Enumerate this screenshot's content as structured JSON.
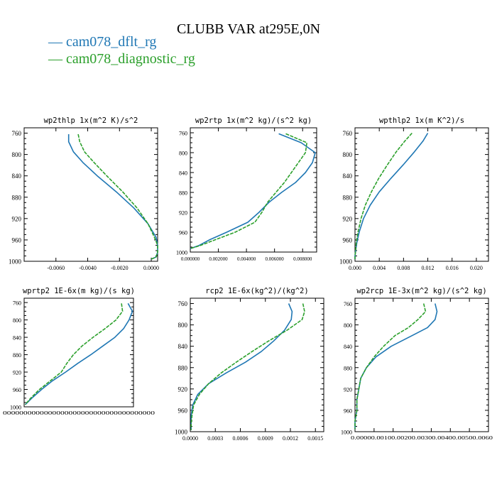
{
  "title": "CLUBB VAR at295E,0N",
  "colors": {
    "dflt": "#1f77b4",
    "diag": "#2ca02c"
  },
  "legend": [
    {
      "label": "cam078_dflt_rg",
      "color": "#1f77b4"
    },
    {
      "label": "cam078_diagnostic_rg",
      "color": "#2ca02c"
    }
  ],
  "chart_data": [
    {
      "type": "line",
      "title": "wp2thlp  1x(m^2 K)/s^2",
      "xlim": [
        -0.008,
        0.0004
      ],
      "ylim": [
        1000,
        750
      ],
      "xticks": [
        -0.006,
        -0.004,
        -0.002,
        0.0
      ],
      "xticklabels": [
        "-0.0060",
        "-0.0040",
        "-0.0020",
        "0.0000"
      ],
      "yticks": [
        760,
        800,
        840,
        880,
        920,
        960,
        1000
      ],
      "y": [
        762,
        776,
        795,
        815,
        840,
        870,
        900,
        930,
        955,
        970,
        983,
        992,
        996
      ],
      "series": [
        {
          "name": "cam078_dflt_rg",
          "values": [
            -0.0052,
            -0.0052,
            -0.0049,
            -0.0043,
            -0.0034,
            -0.0022,
            -0.0011,
            -0.0002,
            0.0003,
            0.0004,
            0.0004,
            0.0003,
            0.0
          ]
        },
        {
          "name": "cam078_diagnostic_rg",
          "values": [
            -0.0046,
            -0.0045,
            -0.0042,
            -0.0036,
            -0.0028,
            -0.0018,
            -0.0009,
            -0.0002,
            0.0002,
            0.0004,
            0.0004,
            0.0003,
            0.0
          ]
        }
      ]
    },
    {
      "type": "line",
      "title": "wp2rtp  1x(m^2 kg)/(s^2 kg)",
      "xlim": [
        0.0,
        0.009
      ],
      "ylim": [
        1000,
        750
      ],
      "xticks": [
        0.0,
        0.002,
        0.004,
        0.006,
        0.008
      ],
      "xticklabels": [
        "0.000000",
        "0.002000",
        "0.004000",
        "0.006000",
        "0.008000"
      ],
      "yticks": [
        760,
        800,
        840,
        880,
        920,
        960,
        1000
      ],
      "y": [
        762,
        780,
        800,
        820,
        840,
        860,
        880,
        900,
        920,
        940,
        960,
        975,
        987,
        993
      ],
      "series": [
        {
          "name": "cam078_dflt_rg",
          "values": [
            0.0063,
            0.0079,
            0.0089,
            0.0087,
            0.0082,
            0.0075,
            0.0065,
            0.0056,
            0.0049,
            0.0041,
            0.0026,
            0.0014,
            0.0006,
            0.0
          ]
        },
        {
          "name": "cam078_diagnostic_rg",
          "values": [
            0.0068,
            0.0083,
            0.0082,
            0.0077,
            0.0072,
            0.0067,
            0.0061,
            0.0055,
            0.0051,
            0.0046,
            0.0032,
            0.0018,
            0.0007,
            0.0
          ]
        }
      ]
    },
    {
      "type": "line",
      "title": "wpthlp2  1x(m K^2)/s",
      "xlim": [
        0.0,
        0.022
      ],
      "ylim": [
        1000,
        750
      ],
      "xticks": [
        0.0,
        0.004,
        0.008,
        0.012,
        0.016,
        0.02
      ],
      "xticklabels": [
        "0.000",
        "0.004",
        "0.008",
        "0.012",
        "0.016",
        "0.020"
      ],
      "yticks": [
        760,
        800,
        840,
        880,
        920,
        960,
        1000
      ],
      "y": [
        760,
        775,
        795,
        820,
        845,
        870,
        895,
        920,
        945,
        965,
        980,
        990,
        996
      ],
      "series": [
        {
          "name": "cam078_dflt_rg",
          "values": [
            0.012,
            0.0112,
            0.0098,
            0.0079,
            0.0059,
            0.004,
            0.0025,
            0.0014,
            0.0007,
            0.0003,
            0.0001,
            0.0,
            0.0
          ]
        },
        {
          "name": "cam078_diagnostic_rg",
          "values": [
            0.0094,
            0.0082,
            0.0068,
            0.0053,
            0.0039,
            0.0027,
            0.0017,
            0.001,
            0.0005,
            0.0002,
            0.0001,
            0.0,
            0.0
          ]
        }
      ]
    },
    {
      "type": "line",
      "title": "wprtp2  1E-6x(m kg)/(s kg)",
      "xlim": [
        0.0,
        0.5
      ],
      "ylim": [
        1000,
        750
      ],
      "xticks": [],
      "xticklabels": [],
      "xtick_overlap_text": "0000000000000000000000000000000000000",
      "yticks": [
        760,
        800,
        840,
        880,
        920,
        960,
        1000
      ],
      "y": [
        762,
        780,
        800,
        820,
        840,
        860,
        880,
        900,
        920,
        940,
        960,
        980,
        995
      ],
      "series": [
        {
          "name": "cam078_dflt_rg",
          "values": [
            0.475,
            0.495,
            0.48,
            0.455,
            0.415,
            0.36,
            0.305,
            0.245,
            0.19,
            0.13,
            0.08,
            0.035,
            0.005
          ]
        },
        {
          "name": "cam078_diagnostic_rg",
          "values": [
            0.445,
            0.45,
            0.42,
            0.37,
            0.315,
            0.265,
            0.225,
            0.195,
            0.17,
            0.12,
            0.07,
            0.03,
            0.005
          ]
        }
      ]
    },
    {
      "type": "line",
      "title": "rcp2  1E-6x(kg^2)/(kg^2)",
      "xlim": [
        0.0,
        0.0016
      ],
      "ylim": [
        1000,
        750
      ],
      "xticks": [
        0.0,
        0.0003,
        0.0006,
        0.0009,
        0.0012,
        0.0015
      ],
      "xticklabels": [
        "0.0000",
        "0.0003",
        "0.0006",
        "0.0009",
        "0.0012",
        "0.0015"
      ],
      "yticks": [
        760,
        800,
        840,
        880,
        920,
        960,
        1000
      ],
      "y": [
        760,
        775,
        790,
        810,
        830,
        850,
        870,
        890,
        910,
        930,
        950,
        970,
        985,
        997
      ],
      "series": [
        {
          "name": "cam078_dflt_rg",
          "values": [
            0.00118,
            0.00122,
            0.00121,
            0.00113,
            0.001,
            0.00085,
            0.00066,
            0.00043,
            0.00022,
            9e-05,
            3e-05,
            1e-05,
            1e-05,
            1e-05
          ]
        },
        {
          "name": "cam078_diagnostic_rg",
          "values": [
            0.00135,
            0.00137,
            0.00134,
            0.00116,
            0.00094,
            0.00074,
            0.00055,
            0.00037,
            0.00022,
            0.00011,
            4e-05,
            2e-05,
            1e-05,
            1e-05
          ]
        }
      ]
    },
    {
      "type": "line",
      "title": "wp2rcp  1E-3x(m^2 kg)/(s^2 kg)",
      "xlim": [
        0.0,
        0.007
      ],
      "ylim": [
        1000,
        750
      ],
      "xticks": [
        0.0,
        0.001,
        0.002,
        0.003,
        0.004,
        0.005,
        0.006
      ],
      "xticklabels": [
        "0.000",
        "0.001",
        "0.002",
        "0.003",
        "0.004",
        "0.005",
        "0.006"
      ],
      "xtick_overlap_text": "0.00000.00100.00200.00300.00400.00500.0060",
      "yticks": [
        760,
        800,
        840,
        880,
        920,
        960,
        1000
      ],
      "y": [
        760,
        775,
        790,
        805,
        820,
        840,
        860,
        880,
        900,
        920,
        940,
        960,
        980,
        995
      ],
      "series": [
        {
          "name": "cam078_dflt_rg",
          "values": [
            0.0042,
            0.0043,
            0.0042,
            0.0038,
            0.003,
            0.0019,
            0.0011,
            0.0006,
            0.0003,
            0.0002,
            0.0001,
            0.0001,
            0.0,
            0.0
          ]
        },
        {
          "name": "cam078_diagnostic_rg",
          "values": [
            0.0036,
            0.0037,
            0.0033,
            0.0028,
            0.0021,
            0.0015,
            0.001,
            0.0006,
            0.0003,
            0.0002,
            0.0001,
            0.0001,
            0.0,
            0.0
          ]
        }
      ]
    }
  ]
}
